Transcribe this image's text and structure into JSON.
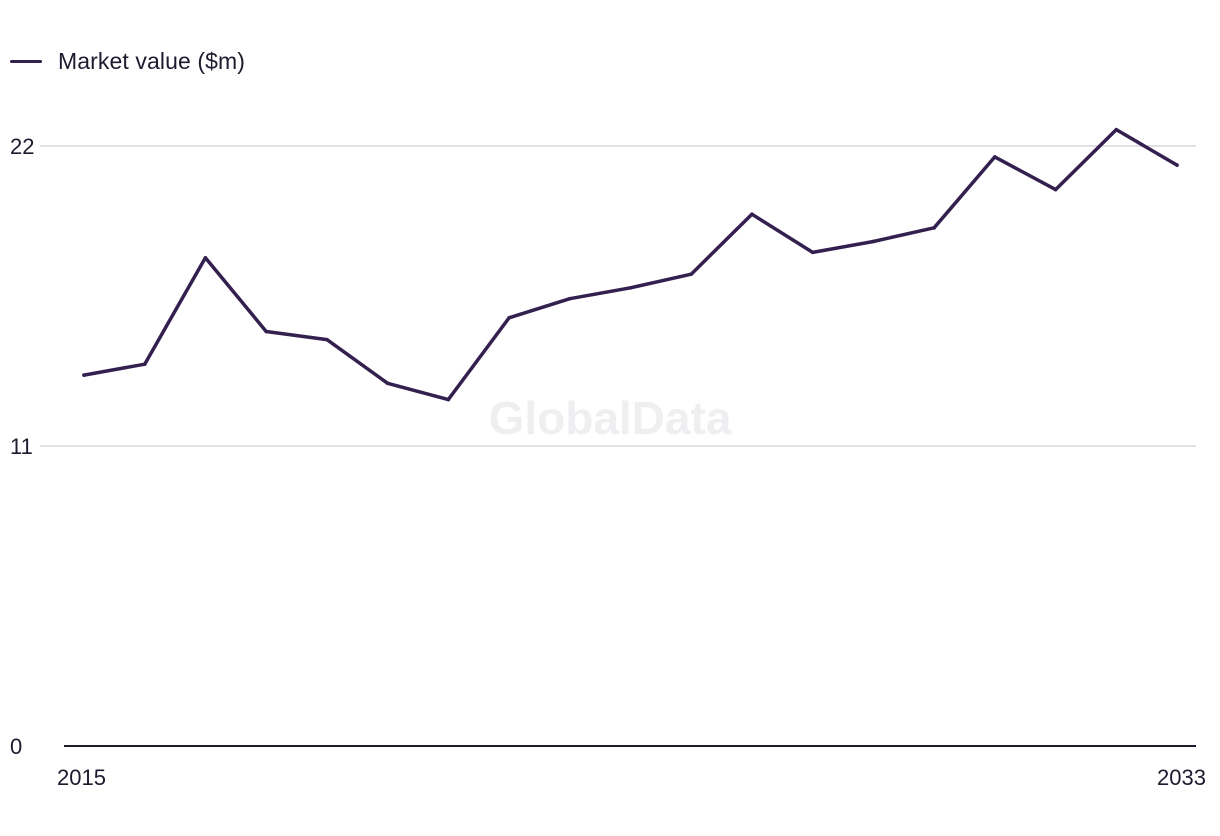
{
  "chart_data": {
    "type": "line",
    "title": "",
    "xlabel": "",
    "ylabel": "",
    "x": [
      2015,
      2016,
      2017,
      2018,
      2019,
      2020,
      2021,
      2022,
      2023,
      2024,
      2025,
      2026,
      2027,
      2028,
      2029,
      2030,
      2031,
      2032,
      2033
    ],
    "series": [
      {
        "name": "Market value ($m)",
        "color": "#33204f",
        "values": [
          13.6,
          14.0,
          17.9,
          15.2,
          14.9,
          13.3,
          12.7,
          15.7,
          16.4,
          16.8,
          17.3,
          19.5,
          18.1,
          18.5,
          19.0,
          21.6,
          20.4,
          22.6,
          21.3
        ]
      }
    ],
    "ylim": [
      0,
      22
    ],
    "yticks": [
      0,
      11,
      22
    ],
    "xticks": [
      2015,
      2033
    ],
    "ytick_labels": [
      "0",
      "11",
      "22"
    ],
    "xtick_labels": [
      "2015",
      "2033"
    ],
    "grid": true,
    "legend": "top-left",
    "watermark": "GlobalData"
  }
}
